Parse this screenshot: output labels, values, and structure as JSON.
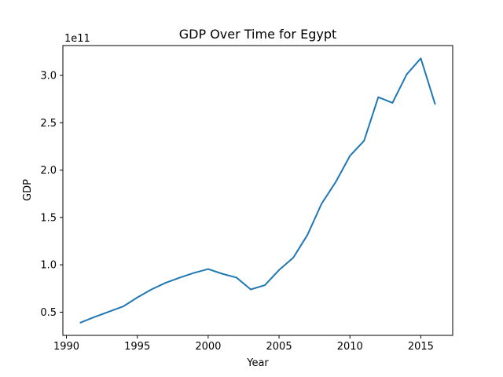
{
  "chart_data": {
    "type": "line",
    "title": "GDP Over Time for Egypt",
    "xlabel": "Year",
    "ylabel": "GDP",
    "y_offset_label": "1e11",
    "x": [
      1991,
      1992,
      1993,
      1994,
      1995,
      1996,
      1997,
      1998,
      1999,
      2000,
      2001,
      2002,
      2003,
      2004,
      2005,
      2006,
      2007,
      2008,
      2009,
      2010,
      2011,
      2012,
      2013,
      2014,
      2015,
      2016
    ],
    "series": [
      {
        "name": "GDP",
        "color": "#1f77b4",
        "values": [
          0.39,
          0.45,
          0.505,
          0.56,
          0.655,
          0.74,
          0.81,
          0.865,
          0.915,
          0.955,
          0.905,
          0.865,
          0.74,
          0.785,
          0.945,
          1.075,
          1.315,
          1.645,
          1.875,
          2.15,
          2.31,
          2.77,
          2.71,
          3.01,
          3.18,
          2.7
        ]
      }
    ],
    "xlim": [
      1989.75,
      2017.25
    ],
    "ylim": [
      0.255,
      3.315
    ],
    "x_ticks": [
      1990,
      1995,
      2000,
      2005,
      2010,
      2015
    ],
    "x_tick_labels": [
      "1990",
      "1995",
      "2000",
      "2005",
      "2010",
      "2015"
    ],
    "y_ticks": [
      0.5,
      1.0,
      1.5,
      2.0,
      2.5,
      3.0
    ],
    "y_tick_labels": [
      "0.5",
      "1.0",
      "1.5",
      "2.0",
      "2.5",
      "3.0"
    ],
    "grid": false,
    "legend": "none"
  }
}
